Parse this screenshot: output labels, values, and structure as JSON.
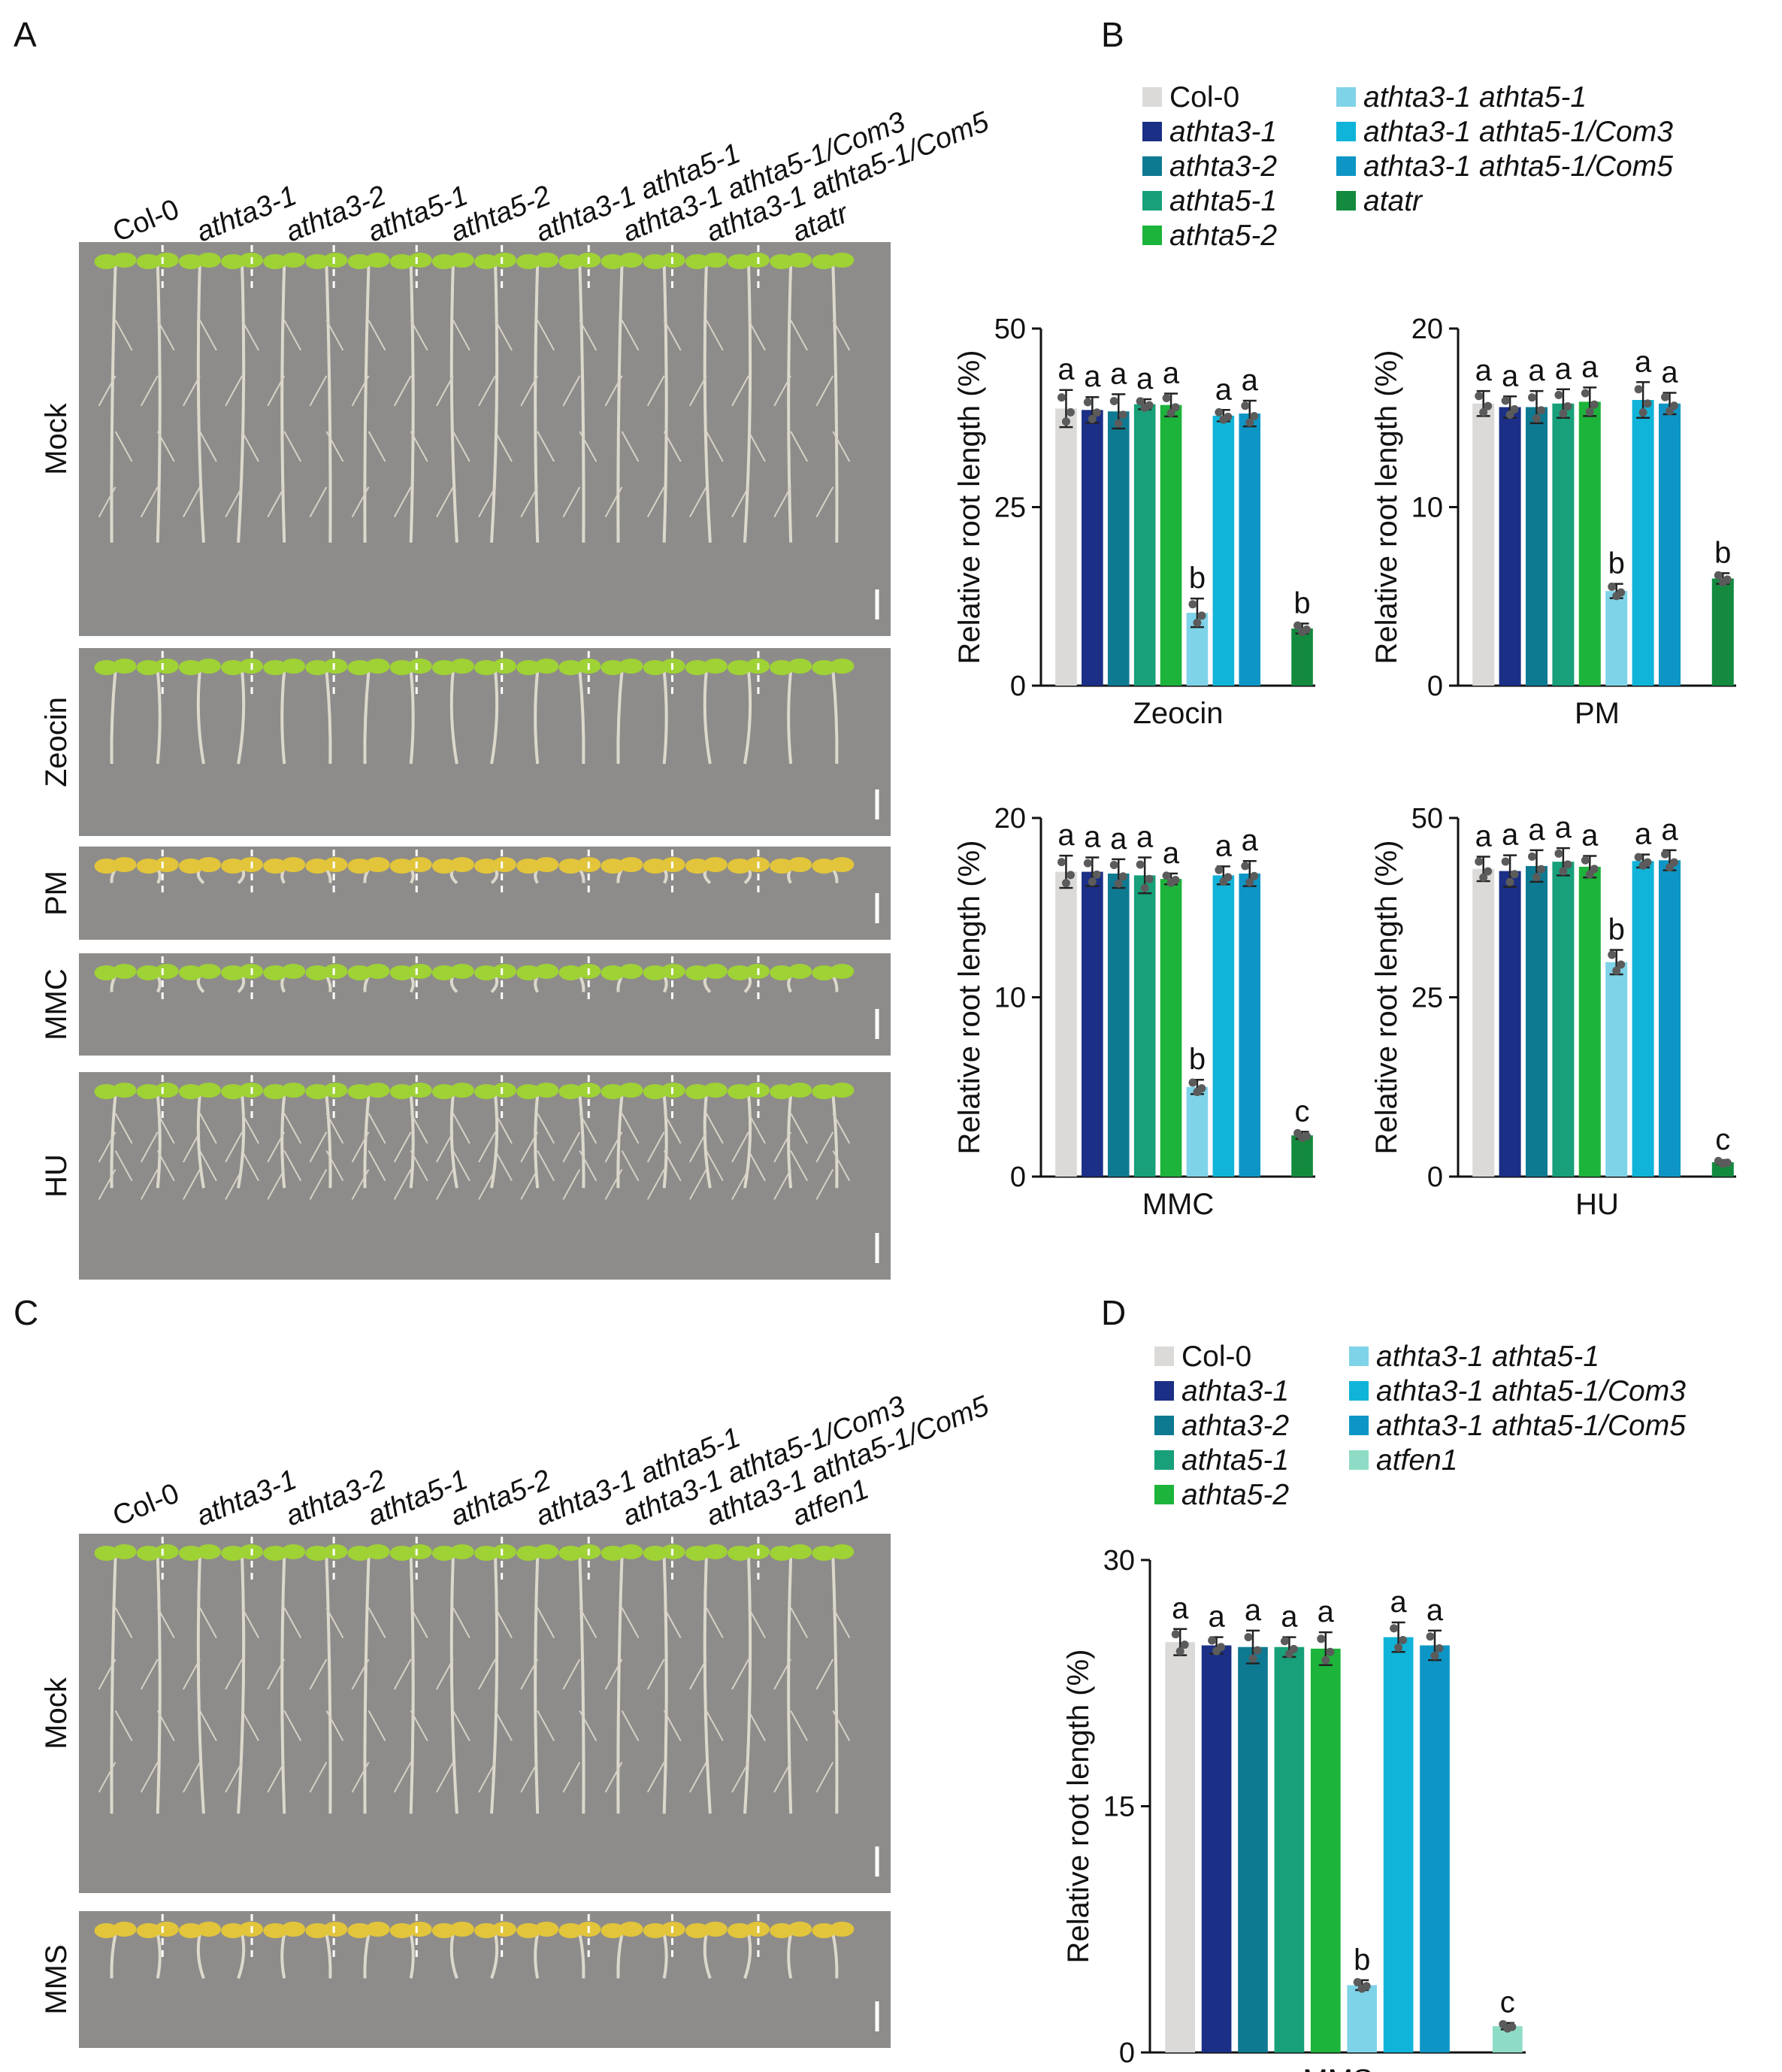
{
  "panels": {
    "A": {
      "label": "A",
      "genotypes": [
        "Col-0",
        "athta3-1",
        "athta3-2",
        "athta5-1",
        "athta5-2",
        "athta3-1 athta5-1",
        "athta3-1 athta5-1/Com3",
        "athta3-1 athta5-1/Com5",
        "atatr"
      ],
      "rows": [
        "Mock",
        "Zeocin",
        "PM",
        "MMC",
        "HU"
      ]
    },
    "B": {
      "label": "B",
      "legend": [
        "Col-0",
        "athta3-1",
        "athta3-2",
        "athta5-1",
        "athta5-2",
        "athta3-1 athta5-1",
        "athta3-1 athta5-1/Com3",
        "athta3-1 athta5-1/Com5",
        "atatr"
      ]
    },
    "C": {
      "label": "C",
      "genotypes": [
        "Col-0",
        "athta3-1",
        "athta3-2",
        "athta5-1",
        "athta5-2",
        "athta3-1 athta5-1",
        "athta3-1 athta5-1/Com3",
        "athta3-1 athta5-1/Com5",
        "atfen1"
      ],
      "rows": [
        "Mock",
        "MMS"
      ]
    },
    "D": {
      "label": "D",
      "legend": [
        "Col-0",
        "athta3-1",
        "athta3-2",
        "athta5-1",
        "athta5-2",
        "athta3-1 athta5-1",
        "athta3-1 athta5-1/Com3",
        "athta3-1 athta5-1/Com5",
        "atfen1"
      ]
    }
  },
  "colors": {
    "Col-0": "#dcdad8",
    "athta3-1": "#1b2f86",
    "athta3-2": "#0e7a92",
    "athta5-1": "#17a07a",
    "athta5-2": "#1cb43a",
    "athta3-1 athta5-1": "#7fd3e8",
    "athta3-1 athta5-1/Com3": "#10b4d8",
    "athta3-1 athta5-1/Com5": "#0d96c5",
    "atatr": "#138a3e",
    "atfen1": "#8fdcc6"
  },
  "chart_data": [
    {
      "type": "bar",
      "title": "Zeocin",
      "ylabel": "Relative root length (%)",
      "ylim": [
        0,
        50
      ],
      "yticks": [
        0,
        25,
        50
      ],
      "categories": [
        "Col-0",
        "athta3-1",
        "athta3-2",
        "athta5-1",
        "athta5-2",
        "athta3-1 athta5-1",
        "athta3-1 athta5-1/Com3",
        "athta3-1 athta5-1/Com5",
        "atatr"
      ],
      "values": [
        38.8,
        38.6,
        38.4,
        39.4,
        39.3,
        10.2,
        37.8,
        38.1,
        8.0
      ],
      "errors": [
        2.6,
        1.8,
        2.4,
        0.7,
        1.6,
        2.0,
        0.8,
        1.8,
        0.7
      ],
      "letters": [
        "a",
        "a",
        "a",
        "a",
        "a",
        "b",
        "a",
        "a",
        "b"
      ]
    },
    {
      "type": "bar",
      "title": "PM",
      "ylabel": "Relative root length (%)",
      "ylim": [
        0,
        20
      ],
      "yticks": [
        0,
        10,
        20
      ],
      "categories": [
        "Col-0",
        "athta3-1",
        "athta3-2",
        "athta5-1",
        "athta5-2",
        "athta3-1 athta5-1",
        "athta3-1 athta5-1/Com3",
        "athta3-1 athta5-1/Com5",
        "atatr"
      ],
      "values": [
        15.8,
        15.6,
        15.6,
        15.8,
        15.9,
        5.3,
        16.0,
        15.8,
        6.0
      ],
      "errors": [
        0.7,
        0.6,
        0.9,
        0.8,
        0.8,
        0.4,
        1.0,
        0.6,
        0.3
      ],
      "letters": [
        "a",
        "a",
        "a",
        "a",
        "a",
        "b",
        "a",
        "a",
        "b"
      ]
    },
    {
      "type": "bar",
      "title": "MMC",
      "ylabel": "Relative root length (%)",
      "ylim": [
        0,
        20
      ],
      "yticks": [
        0,
        10,
        20
      ],
      "categories": [
        "Col-0",
        "athta3-1",
        "athta3-2",
        "athta5-1",
        "athta5-2",
        "athta3-1 athta5-1",
        "athta3-1 athta5-1/Com3",
        "athta3-1 athta5-1/Com5",
        "atatr"
      ],
      "values": [
        17.0,
        17.0,
        16.9,
        16.8,
        16.6,
        5.0,
        16.8,
        16.9,
        2.3
      ],
      "errors": [
        0.9,
        0.8,
        0.8,
        1.0,
        0.3,
        0.4,
        0.5,
        0.7,
        0.2
      ],
      "letters": [
        "a",
        "a",
        "a",
        "a",
        "a",
        "b",
        "a",
        "a",
        "c"
      ]
    },
    {
      "type": "bar",
      "title": "HU",
      "ylabel": "Relative root length (%)",
      "ylim": [
        0,
        50
      ],
      "yticks": [
        0,
        25,
        50
      ],
      "categories": [
        "Col-0",
        "athta3-1",
        "athta3-2",
        "athta5-1",
        "athta5-2",
        "athta3-1 athta5-1",
        "athta3-1 athta5-1/Com3",
        "athta3-1 athta5-1/Com5",
        "atatr"
      ],
      "values": [
        42.9,
        42.6,
        43.3,
        43.9,
        43.2,
        29.9,
        44.0,
        44.1,
        2.0
      ],
      "errors": [
        1.7,
        2.2,
        2.2,
        1.9,
        1.5,
        1.7,
        0.9,
        1.4,
        0.3
      ],
      "letters": [
        "a",
        "a",
        "a",
        "a",
        "a",
        "b",
        "a",
        "a",
        "c"
      ]
    },
    {
      "type": "bar",
      "title": "MMS",
      "ylabel": "Relative root length (%)",
      "ylim": [
        0,
        30
      ],
      "yticks": [
        0,
        15,
        30
      ],
      "categories": [
        "Col-0",
        "athta3-1",
        "athta3-2",
        "athta5-1",
        "athta5-2",
        "athta3-1 athta5-1",
        "athta3-1 athta5-1/Com3",
        "athta3-1 athta5-1/Com5",
        "atfen1"
      ],
      "values": [
        25.0,
        24.8,
        24.7,
        24.7,
        24.6,
        4.1,
        25.3,
        24.8,
        1.6
      ],
      "errors": [
        0.8,
        0.5,
        1.0,
        0.6,
        1.0,
        0.3,
        0.9,
        0.9,
        0.2
      ],
      "letters": [
        "a",
        "a",
        "a",
        "a",
        "a",
        "b",
        "a",
        "a",
        "c"
      ]
    }
  ]
}
